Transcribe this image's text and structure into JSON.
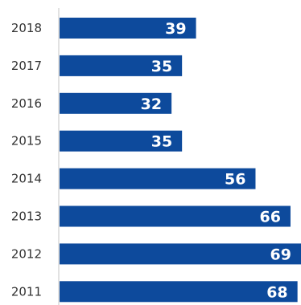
{
  "chart_data": {
    "type": "bar",
    "orientation": "horizontal",
    "categories": [
      "2018",
      "2017",
      "2016",
      "2015",
      "2014",
      "2013",
      "2012",
      "2011"
    ],
    "values": [
      39,
      35,
      32,
      35,
      56,
      66,
      69,
      68
    ],
    "data_labels": true,
    "grid": false,
    "legend": "none",
    "bar_color": "#0d4a9c",
    "label_color": "#ffffff",
    "title": "",
    "xlabel": "",
    "ylabel": ""
  }
}
